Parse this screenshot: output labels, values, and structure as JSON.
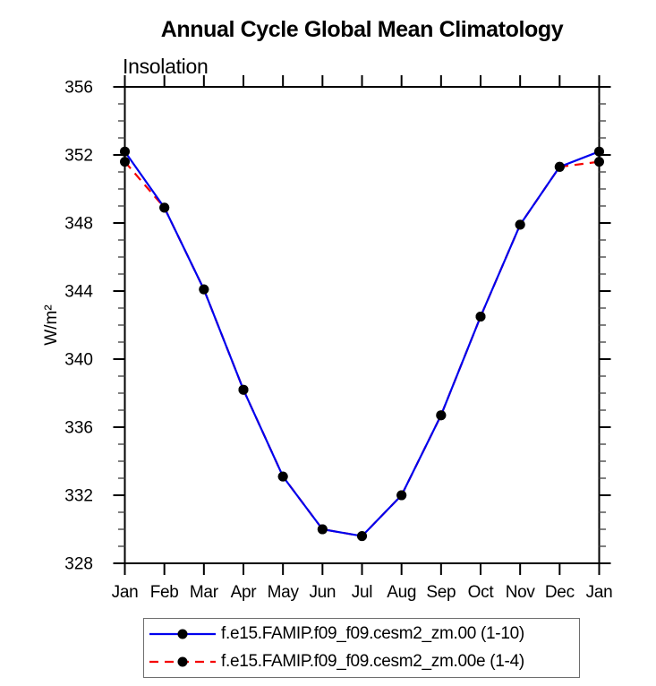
{
  "chart": {
    "title": "Annual Cycle Global Mean Climatology",
    "subtitle": "Insolation",
    "ylabel": "W/m²",
    "legend": [
      {
        "label": "f.e15.FAMIP.f09_f09.cesm2_zm.00 (1-10)",
        "color": "#0000EE",
        "dash": "none"
      },
      {
        "label": "f.e15.FAMIP.f09_f09.cesm2_zm.00e (1-4)",
        "color": "#F50000",
        "dash": "10 7"
      }
    ]
  },
  "chart_data": {
    "type": "line",
    "title": "Annual Cycle Global Mean Climatology",
    "subtitle": "Insolation",
    "xlabel": "",
    "ylabel": "W/m²",
    "categories": [
      "Jan",
      "Feb",
      "Mar",
      "Apr",
      "May",
      "Jun",
      "Jul",
      "Aug",
      "Sep",
      "Oct",
      "Nov",
      "Dec",
      "Jan"
    ],
    "ylim": [
      328,
      356
    ],
    "ytick_major_step": 4,
    "ytick_minor_step": 1,
    "ytick_major_labels": [
      328,
      332,
      336,
      340,
      344,
      348,
      352,
      356
    ],
    "grid": false,
    "legend_position": "bottom",
    "marker": "filled-circle",
    "marker_color": "#000000",
    "series": [
      {
        "name": "f.e15.FAMIP.f09_f09.cesm2_zm.00 (1-10)",
        "color": "#0000EE",
        "style": "solid",
        "values": [
          352.2,
          348.9,
          344.1,
          338.2,
          333.1,
          330.0,
          329.6,
          332.0,
          336.7,
          342.5,
          347.9,
          351.3,
          352.2
        ]
      },
      {
        "name": "f.e15.FAMIP.f09_f09.cesm2_zm.00e (1-4)",
        "color": "#F50000",
        "style": "dashed",
        "values": [
          351.6,
          348.9,
          344.1,
          338.2,
          333.1,
          330.0,
          329.6,
          332.0,
          336.7,
          342.5,
          347.9,
          351.3,
          351.6
        ]
      }
    ]
  }
}
